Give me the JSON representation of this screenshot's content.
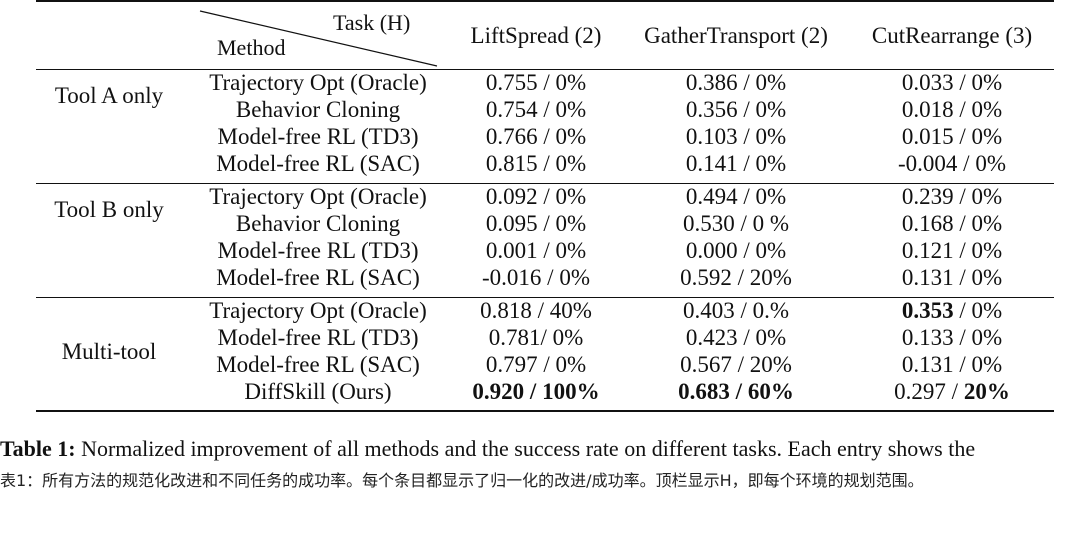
{
  "table": {
    "header": {
      "task_label": "Task (H)",
      "method_label": "Method",
      "tasks": [
        "LiftSpread (2)",
        "GatherTransport (2)",
        "CutRearrange (3)"
      ]
    },
    "groups": [
      {
        "name": "Tool A only",
        "rows": [
          {
            "method": "Trajectory Opt (Oracle)",
            "cells": [
              {
                "v": "0.755 / 0%"
              },
              {
                "v": "0.386 / 0%"
              },
              {
                "v": "0.033 / 0%"
              }
            ]
          },
          {
            "method": "Behavior Cloning",
            "cells": [
              {
                "v": "0.754 / 0%"
              },
              {
                "v": "0.356 / 0%"
              },
              {
                "v": "0.018 / 0%"
              }
            ]
          },
          {
            "method": "Model-free RL (TD3)",
            "cells": [
              {
                "v": "0.766 / 0%"
              },
              {
                "v": "0.103 / 0%"
              },
              {
                "v": "0.015 / 0%"
              }
            ]
          },
          {
            "method": "Model-free RL (SAC)",
            "cells": [
              {
                "v": "0.815 / 0%"
              },
              {
                "v": "0.141 / 0%"
              },
              {
                "v": "-0.004 / 0%"
              }
            ]
          }
        ]
      },
      {
        "name": "Tool B only",
        "rows": [
          {
            "method": "Trajectory Opt (Oracle)",
            "cells": [
              {
                "v": "0.092 / 0%"
              },
              {
                "v": "0.494 / 0%"
              },
              {
                "v": "0.239 / 0%"
              }
            ]
          },
          {
            "method": "Behavior Cloning",
            "cells": [
              {
                "v": "0.095 / 0%"
              },
              {
                "v": "0.530 / 0 %"
              },
              {
                "v": "0.168 / 0%"
              }
            ]
          },
          {
            "method": "Model-free RL (TD3)",
            "cells": [
              {
                "v": "0.001 / 0%"
              },
              {
                "v": "0.000 / 0%"
              },
              {
                "v": "0.121 / 0%"
              }
            ]
          },
          {
            "method": "Model-free RL (SAC)",
            "cells": [
              {
                "v": "-0.016 / 0%"
              },
              {
                "v": "0.592 / 20%"
              },
              {
                "v": "0.131 / 0%"
              }
            ]
          }
        ]
      },
      {
        "name": "Multi-tool",
        "rows": [
          {
            "method": "Trajectory Opt (Oracle)",
            "cells": [
              {
                "v": "0.818 / 40%"
              },
              {
                "v": "0.403 / 0.%"
              },
              {
                "a": "0.353",
                "b": " / 0%",
                "bold": "a"
              }
            ]
          },
          {
            "method": "Model-free RL (TD3)",
            "cells": [
              {
                "v": "0.781/ 0%"
              },
              {
                "v": "0.423 / 0%"
              },
              {
                "v": "0.133 / 0%"
              }
            ]
          },
          {
            "method": "Model-free RL (SAC)",
            "cells": [
              {
                "v": "0.797 / 0%"
              },
              {
                "v": "0.567 / 20%"
              },
              {
                "v": "0.131 / 0%"
              }
            ]
          },
          {
            "method": "DiffSkill (Ours)",
            "cells": [
              {
                "v": "0.920 / 100%",
                "bold": "all"
              },
              {
                "v": "0.683 / 60%",
                "bold": "all"
              },
              {
                "a": "0.297 / ",
                "b": "20%",
                "bold": "b"
              }
            ]
          }
        ]
      }
    ]
  },
  "caption_en": {
    "label": "Table 1:",
    "text": " Normalized improvement of all methods and the success rate on different tasks. Each entry shows the"
  },
  "caption_zh": "表1：所有方法的规范化改进和不同任务的成功率。每个条目都显示了归一化的改进/成功率。顶栏显示H，即每个环境的规划范围。"
}
